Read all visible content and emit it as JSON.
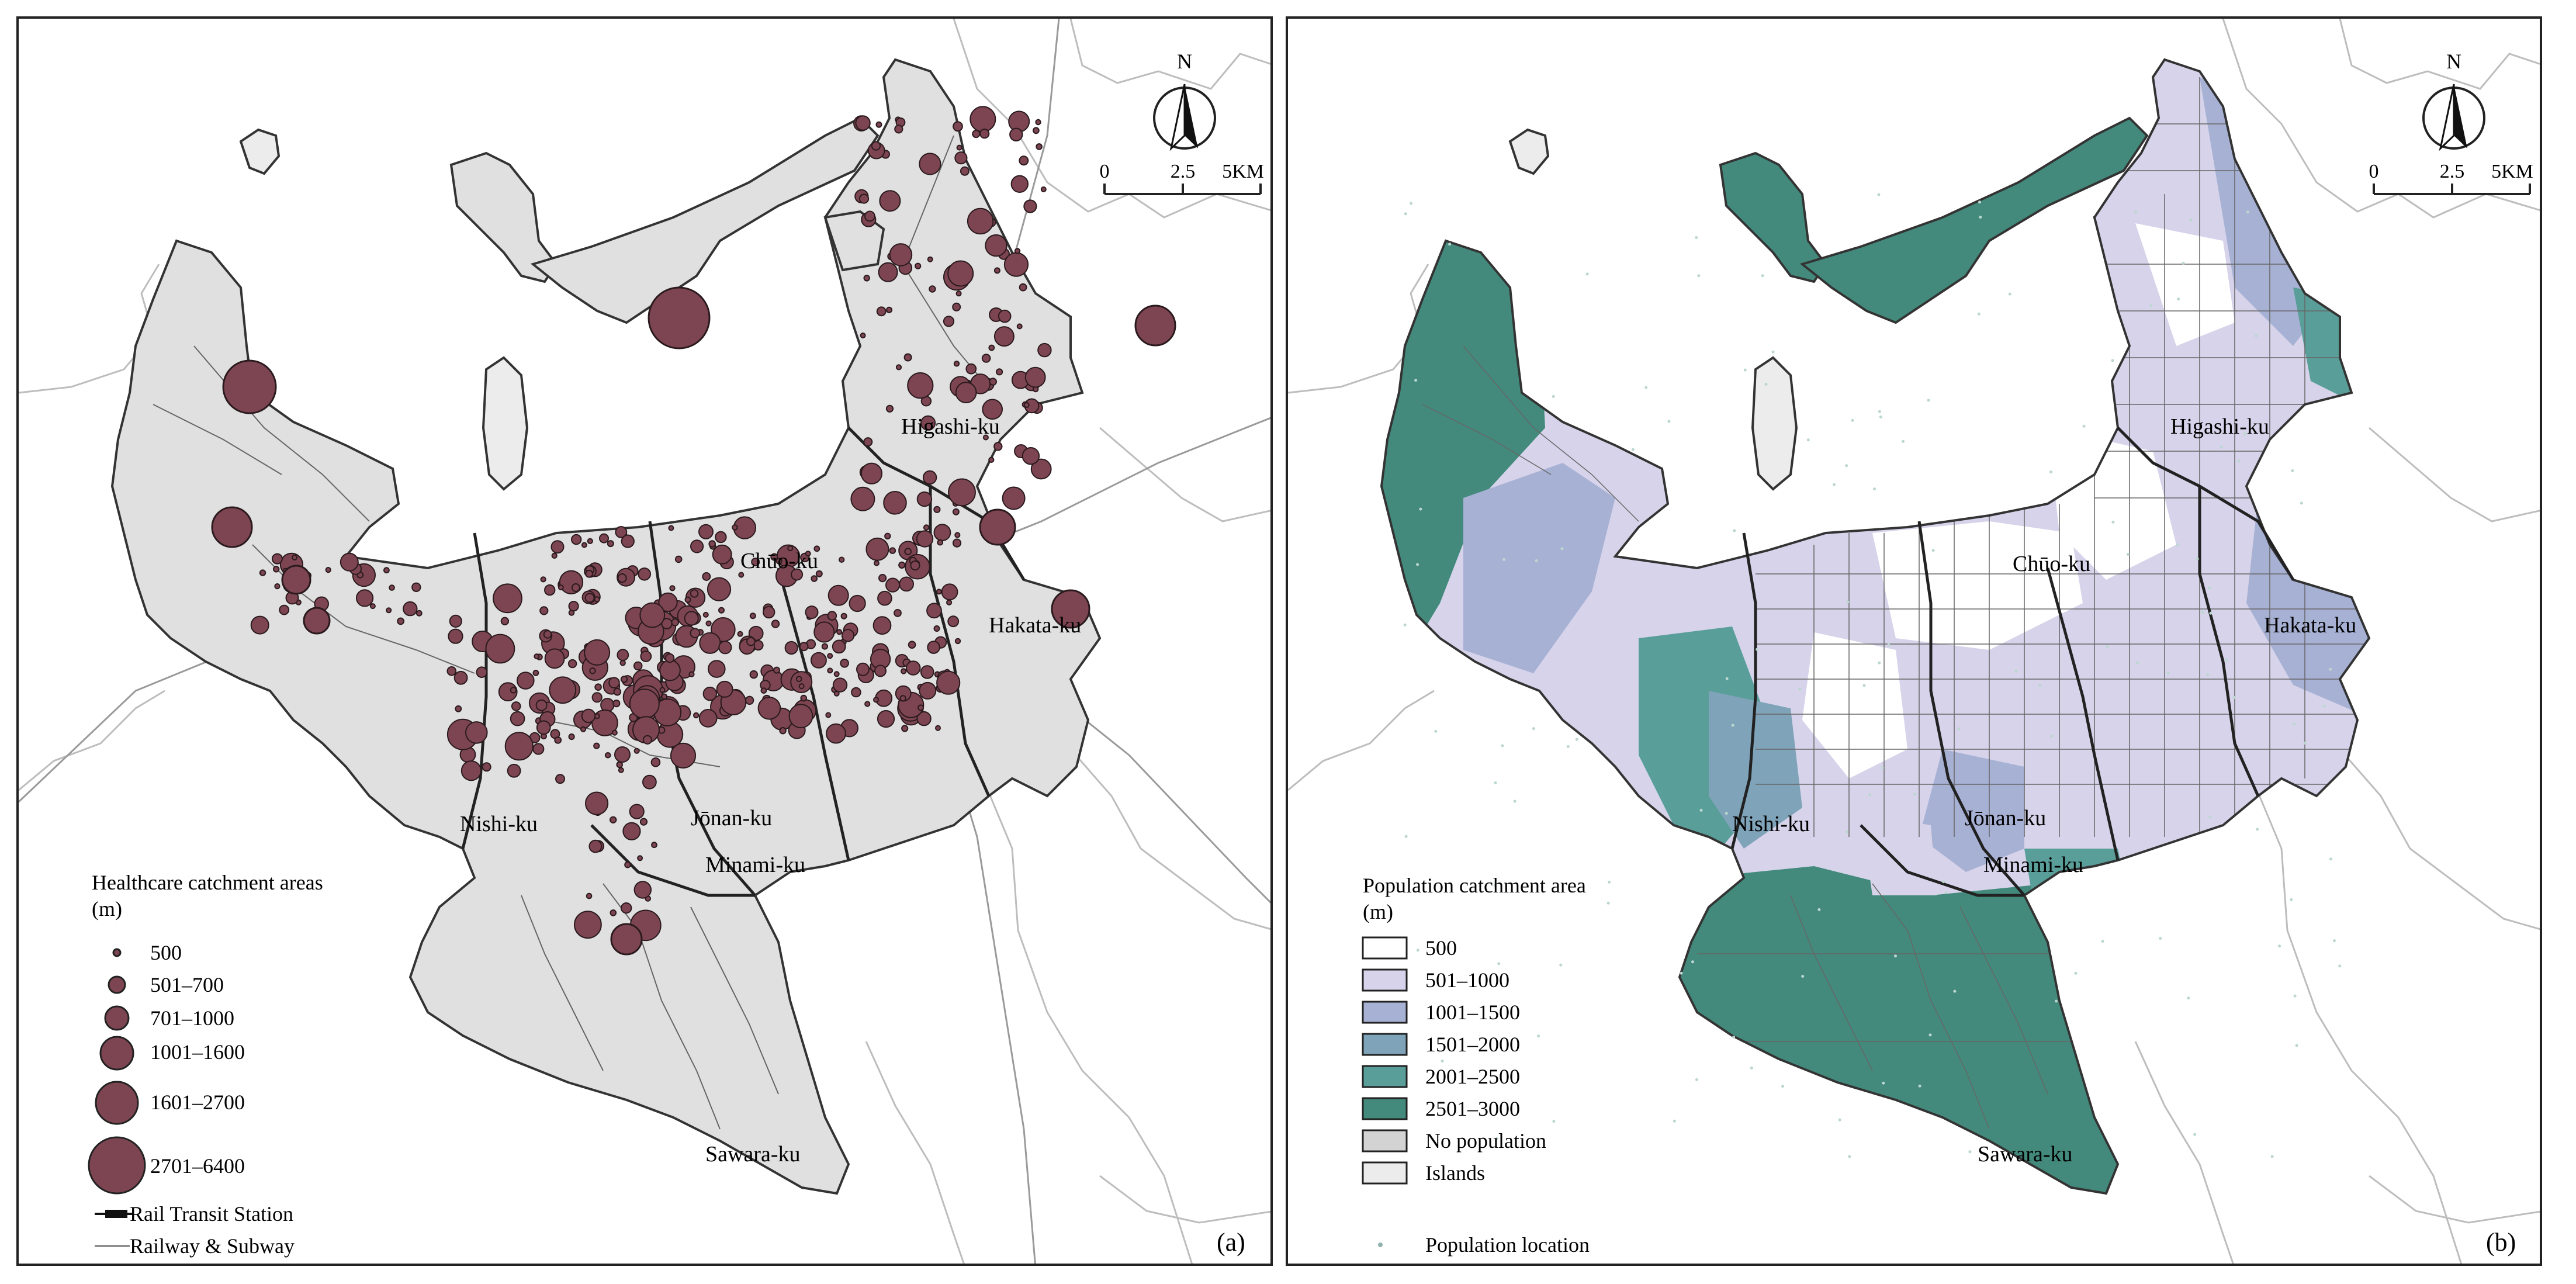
{
  "panel_a": {
    "letter": "(a)",
    "legend_title": "Healthcare catchment areas",
    "legend_unit": "(m)",
    "legend_items": [
      {
        "label": "500"
      },
      {
        "label": "501–700"
      },
      {
        "label": "701–1000"
      },
      {
        "label": "1001–1600"
      },
      {
        "label": "1601–2700"
      },
      {
        "label": "2701–6400"
      }
    ],
    "legend_lines": [
      {
        "label": "Rail Transit Station"
      },
      {
        "label": "Railway & Subway"
      }
    ],
    "circle_color": "#7d4551",
    "land_color": "#e0e0e0"
  },
  "panel_b": {
    "letter": "(b)",
    "legend_title": "Population catchment area",
    "legend_unit": "(m)",
    "legend_items": [
      {
        "label": "500",
        "color": "#ffffff"
      },
      {
        "label": "501–1000",
        "color": "#d6d3ea"
      },
      {
        "label": "1001–1500",
        "color": "#a7b1d4"
      },
      {
        "label": "1501–2000",
        "color": "#7fa3b8"
      },
      {
        "label": "2001–2500",
        "color": "#5a9e9a"
      },
      {
        "label": "2501–3000",
        "color": "#438a7c"
      },
      {
        "label": "No population",
        "color": "#d3d3d3"
      },
      {
        "label": "Islands",
        "color": "#ececec"
      }
    ],
    "legend_points": [
      {
        "label": "Population location"
      }
    ]
  },
  "north_arrow": {
    "letter": "N"
  },
  "scale_bar": {
    "ticks": [
      "0",
      "2.5",
      "5KM"
    ]
  },
  "wards": [
    {
      "name": "Higashi-ku"
    },
    {
      "name": "Chūo-ku"
    },
    {
      "name": "Hakata-ku"
    },
    {
      "name": "Nishi-ku"
    },
    {
      "name": "Jōnan-ku"
    },
    {
      "name": "Minami-ku"
    },
    {
      "name": "Sawara-ku"
    }
  ]
}
